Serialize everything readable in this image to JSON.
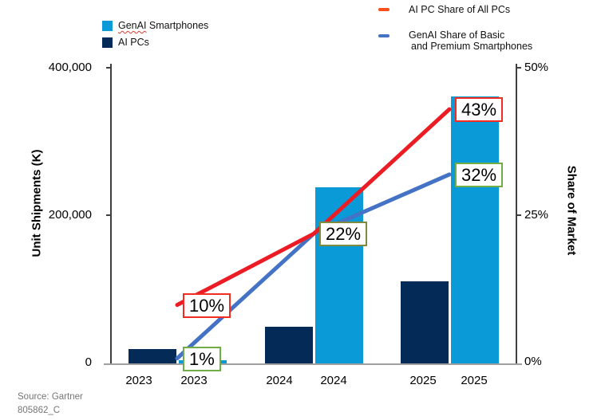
{
  "legend": {
    "bar_items": [
      {
        "label": "GenAI Smartphones",
        "label_parts": [
          "GenAI",
          "Smartphones"
        ],
        "color": "#0A9AD7"
      },
      {
        "label": "AI PCs",
        "color": "#042A58"
      }
    ],
    "line_items": [
      {
        "label": "AI PC Share of All PCs",
        "color": "#F94E1D"
      },
      {
        "label": "GenAI Share of Basic",
        "label_line2": "and Premium Smartphones",
        "color": "#4472C4"
      }
    ]
  },
  "axes": {
    "left_title": "Unit Shipments (K)",
    "right_title": "Share of Market",
    "left_ticks": [
      "400,000",
      "200,000",
      "0"
    ],
    "right_ticks": [
      "50%",
      "25%",
      "0%"
    ],
    "x_labels": [
      "2023",
      "2023",
      "2024",
      "2024",
      "2025",
      "2025"
    ]
  },
  "footer": {
    "source": "Source: Gartner",
    "doc_id": "805862_C"
  },
  "chart_data": {
    "type": "combo-bar-line",
    "categories": [
      "2023",
      "2024",
      "2025"
    ],
    "bar_series": [
      {
        "name": "AI PCs",
        "color": "#042A58",
        "values": [
          20000,
          51000,
          112000
        ]
      },
      {
        "name": "GenAI Smartphones",
        "color": "#0A9AD7",
        "values": [
          5000,
          239000,
          361000
        ]
      }
    ],
    "line_series": [
      {
        "name": "AI PC Share of All PCs",
        "color": "#EC1C24",
        "values": [
          10,
          22,
          43
        ]
      },
      {
        "name": "GenAI Share of Basic and Premium Smartphones",
        "color": "#4472C4",
        "values": [
          1,
          22,
          32
        ]
      }
    ],
    "annotations": [
      {
        "text": "10%",
        "value": 10,
        "series_index": 0,
        "category_index": 0,
        "border_color": "#F02C23"
      },
      {
        "text": "1%",
        "value": 1,
        "series_index": 1,
        "category_index": 0,
        "border_color": "#70AD47"
      },
      {
        "text": "22%",
        "value": 22,
        "series_index": 1,
        "category_index": 1,
        "border_color": "#7E8A3E"
      },
      {
        "text": "43%",
        "value": 43,
        "series_index": 0,
        "category_index": 2,
        "border_color": "#F02C23"
      },
      {
        "text": "32%",
        "value": 32,
        "series_index": 1,
        "category_index": 2,
        "border_color": "#70AD47"
      }
    ],
    "ylabel_left": "Unit Shipments (K)",
    "ylabel_right": "Share of Market",
    "ylim_left": [
      0,
      400000
    ],
    "ylim_right": [
      0,
      50
    ],
    "grid": false,
    "legend_position": "top"
  }
}
